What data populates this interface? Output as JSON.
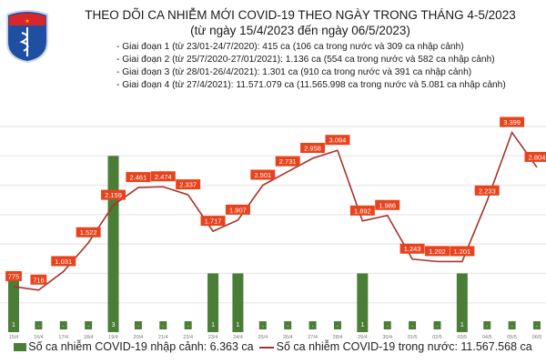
{
  "header": {
    "logo_text": "BỘ Y TẾ · MINISTRY OF HEALTH",
    "title": "THEO DÕI CA NHIỄM MỚI COVID-19 THEO NGÀY TRONG THÁNG 4-5/2023",
    "subtitle": "(từ ngày 15/4/2023 đến ngày 06/5/2023)",
    "notes": [
      "- Giai đoạn 1 (từ 23/01-24/7/2020): 415 ca (106 ca trong nước và 309 ca nhập cảnh)",
      "- Giai đoạn 2 (từ 25/7/2020-27/01/2021): 1.136 ca (554 ca trong nước và 582 ca nhập cảnh)",
      "- Giai đoạn 3 (từ 28/01-26/4/2021): 1.301 ca (910 ca trong nước và 391 ca nhập cảnh)",
      "- Giai đoạn 4 (từ 27/4/2021): 11.571.079 ca (11.565.998 ca trong nước và 5.081 ca nhập cảnh)"
    ]
  },
  "chart_data": {
    "type": "bar+line",
    "categories": [
      "15/4",
      "16/4",
      "17/4",
      "18/4",
      "19/4",
      "20/4",
      "21/4",
      "22/4",
      "23/4",
      "24/4",
      "25/4",
      "26/4",
      "27/4",
      "28/4",
      "29/4",
      "30/4",
      "01/5",
      "02/5",
      "03/5",
      "04/5",
      "05/5",
      "06/5"
    ],
    "series": [
      {
        "name": "Số ca nhiễm COVID-19 nhập cảnh: 6.363 ca",
        "type": "bar",
        "color": "#4a7d35",
        "values": [
          1,
          0,
          0,
          0,
          3,
          0,
          0,
          0,
          1,
          1,
          0,
          0,
          0,
          0,
          1,
          0,
          0,
          0,
          1,
          0,
          0,
          0
        ],
        "labels": [
          "1",
          "-",
          "-",
          "-",
          "3",
          "-",
          "-",
          "-",
          "1",
          "1",
          "-",
          "-",
          "-",
          "-",
          "1",
          "-",
          "-",
          "-",
          "1",
          "-",
          "-",
          "-"
        ]
      },
      {
        "name": "Số ca nhiễm COVID-19 trong nước: 11.567.568 ca",
        "type": "line",
        "color": "#a8322a",
        "values": [
          775,
          716,
          1031,
          1522,
          2159,
          2461,
          2474,
          2337,
          1717,
          1907,
          2501,
          2731,
          2958,
          3094,
          1892,
          1986,
          1243,
          1202,
          1201,
          2233,
          3399,
          2804
        ],
        "labels": [
          "775",
          "716",
          "1.031",
          "1.522",
          "2.159",
          "2.461",
          "2.474",
          "2.337",
          "1.717",
          "1.907",
          "2.501",
          "2.731",
          "2.958",
          "3.094",
          "1.892",
          "1.986",
          "1.243",
          "1.202",
          "1.201",
          "2.233",
          "3.399",
          "2.804"
        ]
      }
    ],
    "line_ylim": [
      0,
      3500
    ],
    "bar_ylim": [
      0,
      3.5
    ],
    "grid": true,
    "label_color": "#e8431c",
    "legend_position": "bottom"
  }
}
